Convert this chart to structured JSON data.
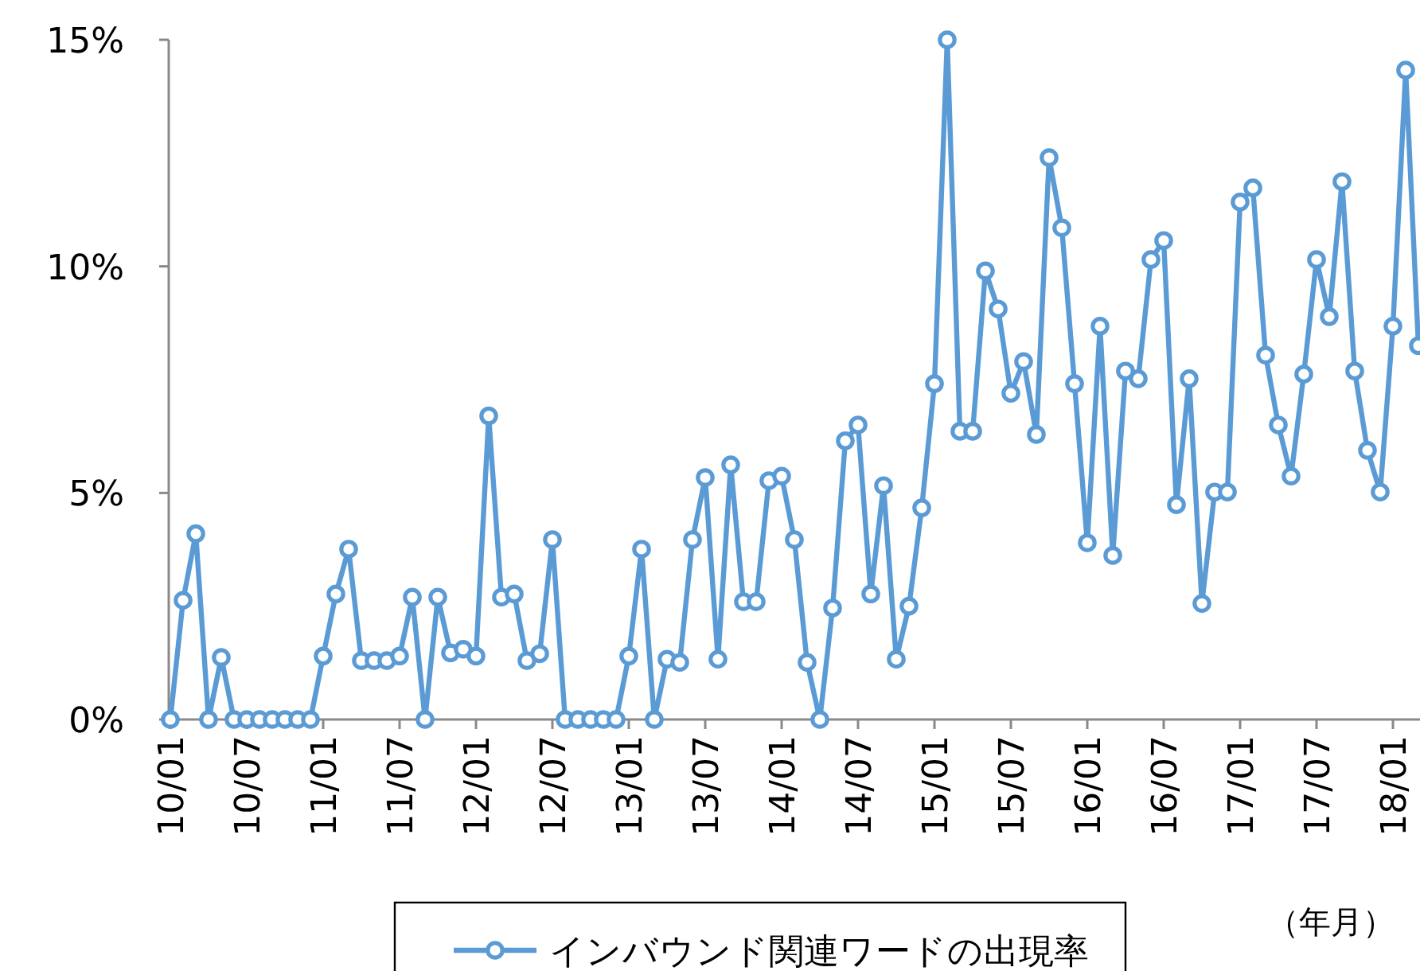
{
  "chart_data": {
    "type": "line",
    "xlabel": "（年月）",
    "ylim": [
      0,
      15
    ],
    "yticks": [
      {
        "value": 0,
        "label": "0%"
      },
      {
        "value": 5,
        "label": "5%"
      },
      {
        "value": 10,
        "label": "10%"
      },
      {
        "value": 15,
        "label": "15%"
      }
    ],
    "categories": [
      "10/01",
      null,
      null,
      null,
      null,
      null,
      "10/07",
      null,
      null,
      null,
      null,
      null,
      "11/01",
      null,
      null,
      null,
      null,
      null,
      "11/07",
      null,
      null,
      null,
      null,
      null,
      "12/01",
      null,
      null,
      null,
      null,
      null,
      "12/07",
      null,
      null,
      null,
      null,
      null,
      "13/01",
      null,
      null,
      null,
      null,
      null,
      "13/07",
      null,
      null,
      null,
      null,
      null,
      "14/01",
      null,
      null,
      null,
      null,
      null,
      "14/07",
      null,
      null,
      null,
      null,
      null,
      "15/01",
      null,
      null,
      null,
      null,
      null,
      "15/07",
      null,
      null,
      null,
      null,
      null,
      "16/01",
      null,
      null,
      null,
      null,
      null,
      "16/07",
      null,
      null,
      null,
      null,
      null,
      "17/01",
      null,
      null,
      null,
      null,
      null,
      "17/07",
      null,
      null,
      null,
      null,
      null,
      "18/01",
      null,
      null
    ],
    "series": [
      {
        "name": "インバウンド関連ワードの出現率",
        "color": "#5b9bd5",
        "values": [
          0,
          2.63,
          4.1,
          0,
          1.37,
          0,
          0,
          0,
          0,
          0,
          0,
          0,
          1.4,
          2.77,
          3.76,
          1.3,
          1.3,
          1.3,
          1.4,
          2.7,
          0,
          2.7,
          1.47,
          1.55,
          1.4,
          6.7,
          2.7,
          2.77,
          1.3,
          1.45,
          3.97,
          0,
          0,
          0,
          0,
          0,
          1.4,
          3.76,
          0,
          1.33,
          1.26,
          3.97,
          5.34,
          1.33,
          5.62,
          2.6,
          2.6,
          5.27,
          5.37,
          3.97,
          1.26,
          0,
          2.46,
          6.15,
          6.5,
          2.77,
          5.16,
          1.33,
          2.5,
          4.67,
          7.41,
          15,
          6.36,
          6.36,
          9.9,
          9.06,
          7.2,
          7.9,
          6.29,
          12.4,
          10.85,
          7.41,
          3.9,
          8.68,
          3.62,
          7.69,
          7.52,
          10.15,
          10.57,
          4.74,
          7.52,
          2.56,
          5.02,
          5.02,
          11.42,
          11.73,
          8.04,
          6.5,
          5.37,
          7.62,
          10.15,
          8.89,
          11.87,
          7.69,
          5.94,
          5.02,
          8.68,
          14.33,
          8.25
        ]
      }
    ],
    "marker": "circle",
    "legend": "bottom"
  }
}
